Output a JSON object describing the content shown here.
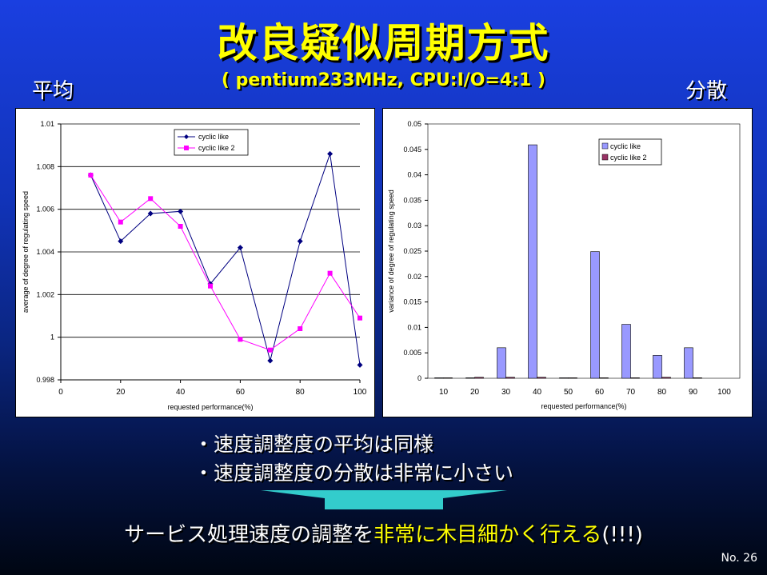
{
  "slide": {
    "title": "改良疑似周期方式",
    "subtitle": "( pentium233MHz, CPU:I/O=4:1 )",
    "left_label": "平均",
    "right_label": "分散",
    "bullets": [
      "・速度調整度の平均は同様",
      "・速度調整度の分散は非常に小さい"
    ],
    "conclusion_pre": "サービス処理速度の調整を",
    "conclusion_highlight": "非常に木目細かく行える",
    "conclusion_post": "(!!!)",
    "page_number": "No. 26",
    "colors": {
      "title": "#ffff00",
      "highlight": "#ffff00",
      "arrow": "#33cccc"
    }
  },
  "chart_data": [
    {
      "type": "line",
      "xlabel": "requested performance(%)",
      "ylabel": "average of degree of regulating speed",
      "xlim": [
        0,
        100
      ],
      "ylim": [
        0.998,
        1.01
      ],
      "x_ticks": [
        "0",
        "20",
        "40",
        "60",
        "80",
        "100"
      ],
      "y_ticks": [
        "0.998",
        "1",
        "1.002",
        "1.004",
        "1.006",
        "1.008",
        "1.01"
      ],
      "grid": "horizontal",
      "legend_position": "top-center",
      "series": [
        {
          "name": "cyclic like",
          "color": "#000080",
          "marker": "diamond",
          "x": [
            10,
            20,
            30,
            40,
            50,
            60,
            70,
            80,
            90,
            100
          ],
          "y": [
            1.0076,
            1.0045,
            1.0058,
            1.0059,
            1.0025,
            1.0042,
            0.9989,
            1.0045,
            1.0086,
            0.9987
          ]
        },
        {
          "name": "cyclic like 2",
          "color": "#ff00ff",
          "marker": "square",
          "x": [
            10,
            20,
            30,
            40,
            50,
            60,
            70,
            80,
            90,
            100
          ],
          "y": [
            1.0076,
            1.0054,
            1.0065,
            1.0052,
            1.0024,
            0.9999,
            0.9994,
            1.0004,
            1.003,
            1.0009
          ]
        }
      ]
    },
    {
      "type": "bar",
      "xlabel": "requested performance(%)",
      "ylabel": "variance of degree of regulating speed",
      "categories": [
        "10",
        "20",
        "30",
        "40",
        "50",
        "60",
        "70",
        "80",
        "90",
        "100"
      ],
      "ylim": [
        0,
        0.05
      ],
      "y_ticks": [
        "0",
        "0.005",
        "0.01",
        "0.015",
        "0.02",
        "0.025",
        "0.03",
        "0.035",
        "0.04",
        "0.045",
        "0.05"
      ],
      "grid": "none",
      "legend_position": "top-right",
      "series": [
        {
          "name": "cyclic like",
          "color": "#9999ff",
          "values": [
            0.0001,
            0.0001,
            0.006,
            0.0459,
            0.0001,
            0.0249,
            0.0106,
            0.0045,
            0.006,
            0
          ]
        },
        {
          "name": "cyclic like 2",
          "color": "#993366",
          "values": [
            0.0001,
            0.0002,
            0.0002,
            0.0002,
            0.0001,
            0.0001,
            0.0001,
            0.0002,
            0.0001,
            0
          ]
        }
      ]
    }
  ]
}
